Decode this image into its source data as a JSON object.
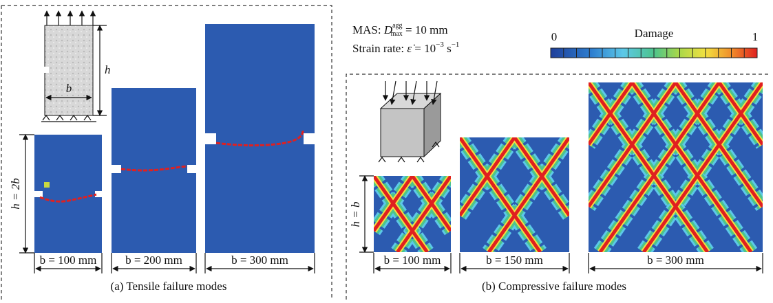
{
  "legend": {
    "mas": [
      "MAS: ",
      "D",
      "agg",
      "max",
      " = 10 mm"
    ],
    "strain_rate": [
      "Strain rate: ",
      "ε̇",
      " = 10",
      "−3",
      " s",
      "−1"
    ],
    "colorbar": {
      "title": "Damage",
      "min": "0",
      "max": "1"
    }
  },
  "panel_a": {
    "caption": "(a)  Tensile failure modes",
    "schematic": {
      "h": "h",
      "b": "b"
    },
    "height_label": "h = 2b",
    "widths": [
      "b = 100 mm",
      "b = 200 mm",
      "b = 300 mm"
    ]
  },
  "panel_b": {
    "caption": "(b)  Compressive failure modes",
    "height_label": "h = b",
    "widths": [
      "b = 100 mm",
      "b = 150 mm",
      "b = 300 mm"
    ]
  }
}
